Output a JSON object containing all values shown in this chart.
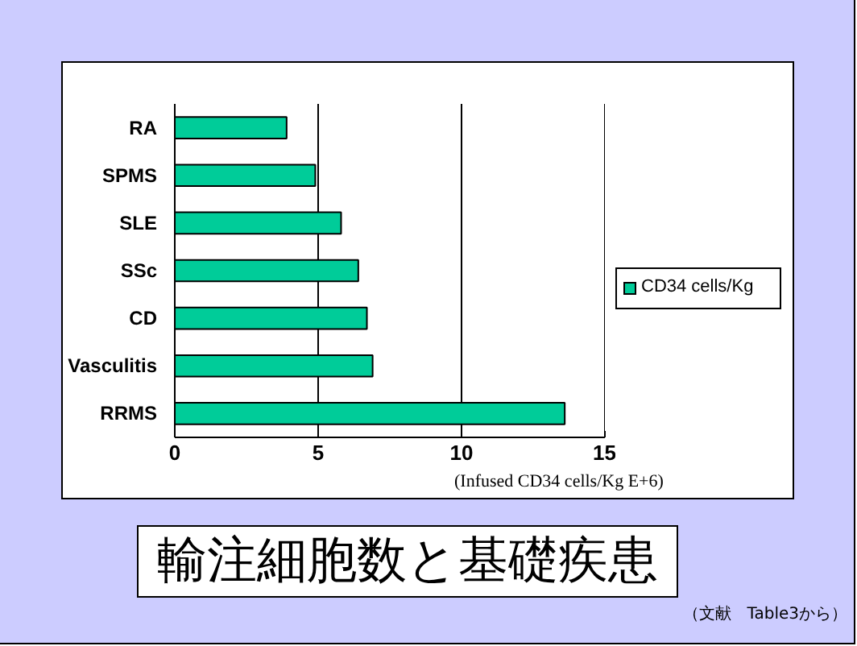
{
  "chart_data": {
    "type": "bar",
    "orientation": "horizontal",
    "title": "輸注細胞数と基礎疾患",
    "xlabel": "(Infused CD34 cells/Kg E+6)",
    "annotations": [
      "（文献　Table3から）"
    ],
    "categories": [
      "RA",
      "SPMS",
      "SLE",
      "SSc",
      "CD",
      "Vasculitis",
      "RRMS"
    ],
    "series": [
      {
        "name": "CD34 cells/Kg",
        "color": "#00cc99",
        "values": [
          3.9,
          4.9,
          5.8,
          6.4,
          6.7,
          6.9,
          13.6
        ]
      }
    ],
    "xlim": [
      0,
      15
    ],
    "xticks": [
      0,
      5,
      10,
      15
    ],
    "grid": "x",
    "legend": "right"
  }
}
